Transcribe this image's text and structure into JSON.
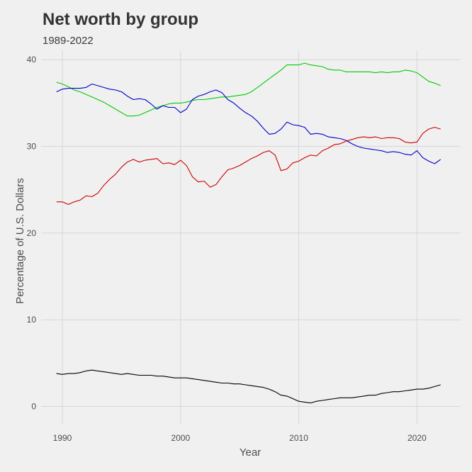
{
  "chart_data": {
    "type": "line",
    "title": "Net worth by group",
    "subtitle": "1989-2022",
    "xlabel": "Year",
    "ylabel": "Percentage of U.S. Dollars",
    "xlim": [
      1988.2,
      2023.7
    ],
    "ylim": [
      -2,
      41
    ],
    "x_ticks": [
      1990,
      2000,
      2010,
      2020
    ],
    "y_ticks": [
      0,
      10,
      20,
      30,
      40
    ],
    "grid": true,
    "legend": "none",
    "series": [
      {
        "color": "#00cc00",
        "x": [
          1989.5,
          1990.0,
          1990.5,
          1991.0,
          1991.5,
          1992.0,
          1992.5,
          1993.0,
          1993.5,
          1994.0,
          1994.5,
          1995.0,
          1995.5,
          1996.0,
          1996.5,
          1997.0,
          1997.5,
          1998.0,
          1998.5,
          1999.0,
          1999.5,
          2000.0,
          2000.5,
          2001.0,
          2001.5,
          2002.0,
          2002.5,
          2003.0,
          2003.5,
          2004.0,
          2004.5,
          2005.0,
          2005.5,
          2006.0,
          2006.5,
          2007.0,
          2007.5,
          2008.0,
          2008.5,
          2009.0,
          2009.5,
          2010.0,
          2010.5,
          2011.0,
          2011.5,
          2012.0,
          2012.5,
          2013.0,
          2013.5,
          2014.0,
          2014.5,
          2015.0,
          2015.5,
          2016.0,
          2016.5,
          2017.0,
          2017.5,
          2018.0,
          2018.5,
          2019.0,
          2019.5,
          2020.0,
          2020.5,
          2021.0,
          2021.5,
          2022.0
        ],
        "values": [
          37.4,
          37.2,
          36.9,
          36.5,
          36.3,
          36.0,
          35.7,
          35.4,
          35.1,
          34.7,
          34.3,
          33.9,
          33.5,
          33.5,
          33.6,
          33.9,
          34.2,
          34.5,
          34.7,
          34.9,
          35.0,
          35.0,
          35.1,
          35.3,
          35.4,
          35.4,
          35.5,
          35.6,
          35.7,
          35.7,
          35.8,
          35.9,
          36.0,
          36.3,
          36.8,
          37.3,
          37.8,
          38.3,
          38.8,
          39.4,
          39.4,
          39.4,
          39.6,
          39.4,
          39.3,
          39.2,
          38.9,
          38.8,
          38.8,
          38.6,
          38.6,
          38.6,
          38.6,
          38.6,
          38.5,
          38.6,
          38.5,
          38.6,
          38.6,
          38.8,
          38.7,
          38.5,
          38.0,
          37.5,
          37.3,
          37.0
        ]
      },
      {
        "color": "#0000cc",
        "x": [
          1989.5,
          1990.0,
          1990.5,
          1991.0,
          1991.5,
          1992.0,
          1992.5,
          1993.0,
          1993.5,
          1994.0,
          1994.5,
          1995.0,
          1995.5,
          1996.0,
          1996.5,
          1997.0,
          1997.5,
          1998.0,
          1998.5,
          1999.0,
          1999.5,
          2000.0,
          2000.5,
          2001.0,
          2001.5,
          2002.0,
          2002.5,
          2003.0,
          2003.5,
          2004.0,
          2004.5,
          2005.0,
          2005.5,
          2006.0,
          2006.5,
          2007.0,
          2007.5,
          2008.0,
          2008.5,
          2009.0,
          2009.5,
          2010.0,
          2010.5,
          2011.0,
          2011.5,
          2012.0,
          2012.5,
          2013.0,
          2013.5,
          2014.0,
          2014.5,
          2015.0,
          2015.5,
          2016.0,
          2016.5,
          2017.0,
          2017.5,
          2018.0,
          2018.5,
          2019.0,
          2019.5,
          2020.0,
          2020.5,
          2021.0,
          2021.5,
          2022.0
        ],
        "values": [
          36.3,
          36.6,
          36.7,
          36.7,
          36.7,
          36.8,
          37.2,
          37.0,
          36.8,
          36.6,
          36.5,
          36.3,
          35.8,
          35.4,
          35.5,
          35.4,
          34.9,
          34.3,
          34.7,
          34.5,
          34.5,
          33.9,
          34.3,
          35.4,
          35.8,
          36.0,
          36.3,
          36.5,
          36.2,
          35.4,
          35.0,
          34.4,
          33.9,
          33.5,
          32.9,
          32.1,
          31.4,
          31.5,
          32.0,
          32.8,
          32.5,
          32.4,
          32.2,
          31.4,
          31.5,
          31.4,
          31.1,
          31.0,
          30.9,
          30.7,
          30.3,
          30.0,
          29.8,
          29.7,
          29.6,
          29.5,
          29.3,
          29.4,
          29.3,
          29.1,
          29.0,
          29.5,
          28.7,
          28.3,
          28.0,
          28.5
        ]
      },
      {
        "color": "#cc0000",
        "x": [
          1989.5,
          1990.0,
          1990.5,
          1991.0,
          1991.5,
          1992.0,
          1992.5,
          1993.0,
          1993.5,
          1994.0,
          1994.5,
          1995.0,
          1995.5,
          1996.0,
          1996.5,
          1997.0,
          1997.5,
          1998.0,
          1998.5,
          1999.0,
          1999.5,
          2000.0,
          2000.5,
          2001.0,
          2001.5,
          2002.0,
          2002.5,
          2003.0,
          2003.5,
          2004.0,
          2004.5,
          2005.0,
          2005.5,
          2006.0,
          2006.5,
          2007.0,
          2007.5,
          2008.0,
          2008.5,
          2009.0,
          2009.5,
          2010.0,
          2010.5,
          2011.0,
          2011.5,
          2012.0,
          2012.5,
          2013.0,
          2013.5,
          2014.0,
          2014.5,
          2015.0,
          2015.5,
          2016.0,
          2016.5,
          2017.0,
          2017.5,
          2018.0,
          2018.5,
          2019.0,
          2019.5,
          2020.0,
          2020.5,
          2021.0,
          2021.5,
          2022.0
        ],
        "values": [
          23.6,
          23.6,
          23.3,
          23.6,
          23.8,
          24.3,
          24.2,
          24.6,
          25.5,
          26.2,
          26.8,
          27.6,
          28.2,
          28.5,
          28.2,
          28.4,
          28.5,
          28.6,
          28.0,
          28.1,
          27.9,
          28.4,
          27.8,
          26.5,
          25.9,
          26.0,
          25.3,
          25.6,
          26.5,
          27.3,
          27.5,
          27.8,
          28.2,
          28.6,
          28.9,
          29.3,
          29.5,
          29.0,
          27.2,
          27.4,
          28.1,
          28.3,
          28.7,
          29.0,
          28.9,
          29.5,
          29.8,
          30.2,
          30.3,
          30.6,
          30.8,
          31.0,
          31.1,
          31.0,
          31.1,
          30.9,
          31.0,
          31.0,
          30.9,
          30.5,
          30.4,
          30.5,
          31.5,
          32.0,
          32.2,
          32.0
        ]
      },
      {
        "color": "#000000",
        "x": [
          1989.5,
          1990.0,
          1990.5,
          1991.0,
          1991.5,
          1992.0,
          1992.5,
          1993.0,
          1993.5,
          1994.0,
          1994.5,
          1995.0,
          1995.5,
          1996.0,
          1996.5,
          1997.0,
          1997.5,
          1998.0,
          1998.5,
          1999.0,
          1999.5,
          2000.0,
          2000.5,
          2001.0,
          2001.5,
          2002.0,
          2002.5,
          2003.0,
          2003.5,
          2004.0,
          2004.5,
          2005.0,
          2005.5,
          2006.0,
          2006.5,
          2007.0,
          2007.5,
          2008.0,
          2008.5,
          2009.0,
          2009.5,
          2010.0,
          2010.5,
          2011.0,
          2011.5,
          2012.0,
          2012.5,
          2013.0,
          2013.5,
          2014.0,
          2014.5,
          2015.0,
          2015.5,
          2016.0,
          2016.5,
          2017.0,
          2017.5,
          2018.0,
          2018.5,
          2019.0,
          2019.5,
          2020.0,
          2020.5,
          2021.0,
          2021.5,
          2022.0
        ],
        "values": [
          3.8,
          3.7,
          3.8,
          3.8,
          3.9,
          4.1,
          4.2,
          4.1,
          4.0,
          3.9,
          3.8,
          3.7,
          3.8,
          3.7,
          3.6,
          3.6,
          3.6,
          3.5,
          3.5,
          3.4,
          3.3,
          3.3,
          3.3,
          3.2,
          3.1,
          3.0,
          2.9,
          2.8,
          2.7,
          2.7,
          2.6,
          2.6,
          2.5,
          2.4,
          2.3,
          2.2,
          2.0,
          1.7,
          1.3,
          1.2,
          0.9,
          0.6,
          0.5,
          0.4,
          0.6,
          0.7,
          0.8,
          0.9,
          1.0,
          1.0,
          1.0,
          1.1,
          1.2,
          1.3,
          1.3,
          1.5,
          1.6,
          1.7,
          1.7,
          1.8,
          1.9,
          2.0,
          2.0,
          2.1,
          2.3,
          2.5
        ]
      }
    ]
  }
}
